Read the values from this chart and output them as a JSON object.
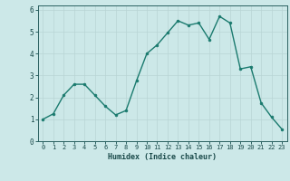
{
  "x": [
    0,
    1,
    2,
    3,
    4,
    5,
    6,
    7,
    8,
    9,
    10,
    11,
    12,
    13,
    14,
    15,
    16,
    17,
    18,
    19,
    20,
    21,
    22,
    23
  ],
  "y": [
    1.0,
    1.25,
    2.1,
    2.6,
    2.6,
    2.1,
    1.6,
    1.2,
    1.4,
    2.75,
    4.0,
    4.4,
    4.95,
    5.5,
    5.3,
    5.4,
    4.65,
    5.7,
    5.4,
    3.3,
    3.4,
    1.75,
    1.1,
    0.55
  ],
  "xlabel": "Humidex (Indice chaleur)",
  "ylim": [
    0,
    6.2
  ],
  "xlim": [
    -0.5,
    23.5
  ],
  "line_color": "#1a7a6e",
  "marker_color": "#1a7a6e",
  "bg_color": "#cce8e8",
  "grid_color": "#b8d5d5",
  "axis_color": "#2a6060",
  "tick_color": "#1a4a4a",
  "label_color": "#1a4a4a",
  "yticks": [
    0,
    1,
    2,
    3,
    4,
    5,
    6
  ],
  "xticks": [
    0,
    1,
    2,
    3,
    4,
    5,
    6,
    7,
    8,
    9,
    10,
    11,
    12,
    13,
    14,
    15,
    16,
    17,
    18,
    19,
    20,
    21,
    22,
    23
  ]
}
